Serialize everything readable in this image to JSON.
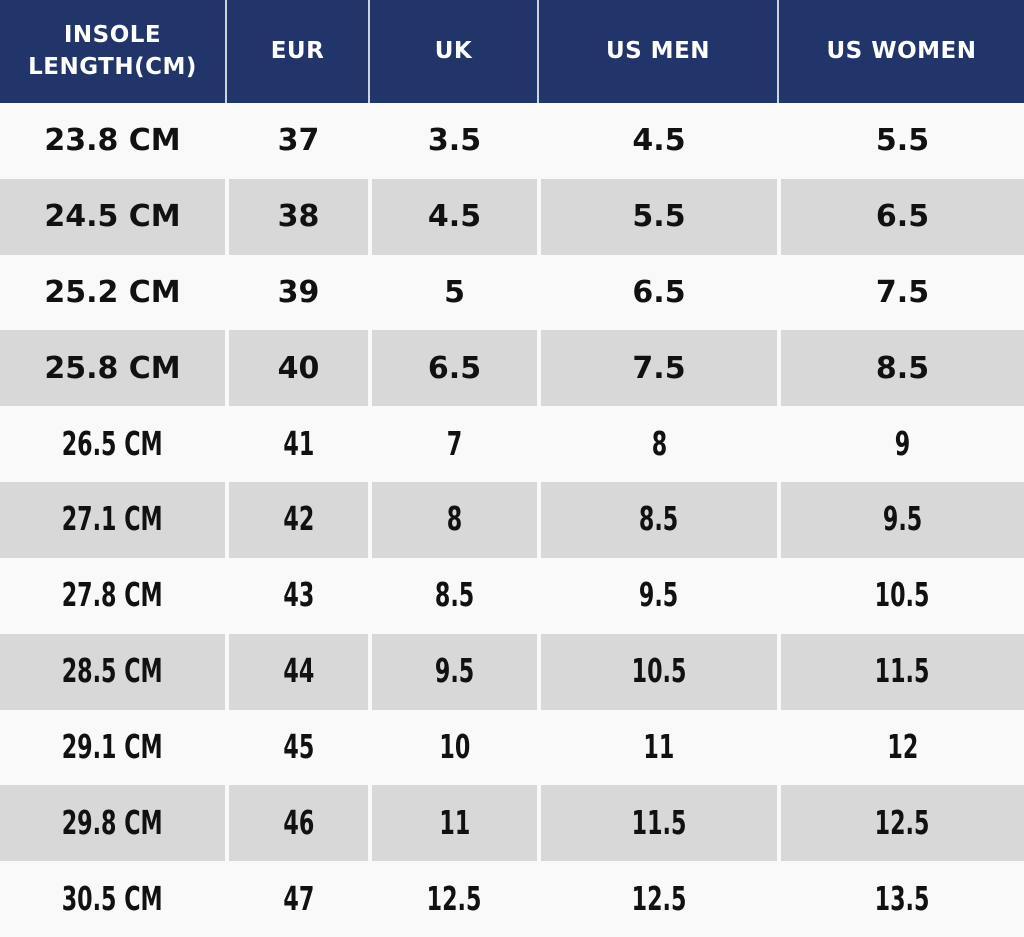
{
  "chart_data": {
    "type": "table",
    "columns": [
      "INSOLE LENGTH(CM)",
      "EUR",
      "UK",
      "US MEN",
      "US WOMEN"
    ],
    "rows": [
      [
        "23.8 CM",
        "37",
        "3.5",
        "4.5",
        "5.5"
      ],
      [
        "24.5 CM",
        "38",
        "4.5",
        "5.5",
        "6.5"
      ],
      [
        "25.2 CM",
        "39",
        "5",
        "6.5",
        "7.5"
      ],
      [
        "25.8 CM",
        "40",
        "6.5",
        "7.5",
        "8.5"
      ],
      [
        "26.5 CM",
        "41",
        "7",
        "8",
        "9"
      ],
      [
        "27.1 CM",
        "42",
        "8",
        "8.5",
        "9.5"
      ],
      [
        "27.8 CM",
        "43",
        "8.5",
        "9.5",
        "10.5"
      ],
      [
        "28.5 CM",
        "44",
        "9.5",
        "10.5",
        "11.5"
      ],
      [
        "29.1 CM",
        "45",
        "10",
        "11",
        "12"
      ],
      [
        "29.8 CM",
        "46",
        "11",
        "11.5",
        "12.5"
      ],
      [
        "30.5 CM",
        "47",
        "12.5",
        "12.5",
        "13.5"
      ]
    ],
    "layout": {
      "striped": true,
      "stripe_pattern": "even rows shaded",
      "header_position": "top",
      "grid": "vertical dividers only"
    }
  },
  "colors": {
    "header_bg": "#22356b",
    "header_text": "#ffffff",
    "header_divider": "#ccd2e0",
    "row_light": "#f9f9f9",
    "row_dark": "#d8d8d8",
    "body_text": "#111111"
  }
}
